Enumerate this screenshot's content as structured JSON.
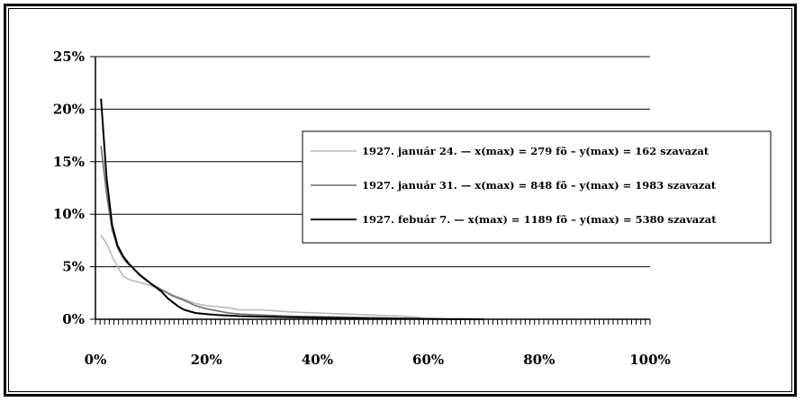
{
  "chart_data": {
    "type": "line",
    "title": "",
    "xlabel": "",
    "ylabel": "",
    "xlim": [
      0,
      100
    ],
    "ylim": [
      0,
      25
    ],
    "x_tick_labels": [
      "0%",
      "20%",
      "40%",
      "60%",
      "80%",
      "100%"
    ],
    "y_tick_labels": [
      "0%",
      "5%",
      "10%",
      "15%",
      "20%",
      "25%"
    ],
    "x_ticks": [
      0,
      20,
      40,
      60,
      80,
      100
    ],
    "y_ticks": [
      0,
      5,
      10,
      15,
      20,
      25
    ],
    "grid": true,
    "legend_position": "right",
    "series": [
      {
        "name": "1927. január 24. — x(max) = 279 fõ – y(max) = 162 szavazat",
        "color": "#b8b8b8",
        "x": [
          1,
          2,
          3,
          4,
          5,
          6,
          8,
          10,
          12,
          14,
          16,
          18,
          20,
          22,
          24,
          26,
          30,
          35,
          40,
          45,
          50,
          55,
          58,
          60
        ],
        "y": [
          8.0,
          7.2,
          6.0,
          5.0,
          4.1,
          3.8,
          3.5,
          3.2,
          2.8,
          2.3,
          1.9,
          1.5,
          1.3,
          1.2,
          1.1,
          0.9,
          0.9,
          0.7,
          0.6,
          0.5,
          0.4,
          0.3,
          0.2,
          0
        ]
      },
      {
        "name": "1927. január 31. — x(max) = 848 fõ – y(max) = 1983 szavazat",
        "color": "#6e6e6e",
        "x": [
          1,
          2,
          3,
          4,
          5,
          6,
          8,
          10,
          12,
          14,
          16,
          18,
          20,
          22,
          24,
          26,
          30,
          35,
          40,
          45,
          50,
          55,
          60,
          65
        ],
        "y": [
          16.5,
          12.0,
          8.5,
          6.8,
          5.8,
          5.2,
          4.3,
          3.4,
          2.8,
          2.2,
          1.8,
          1.3,
          1.0,
          0.8,
          0.6,
          0.5,
          0.4,
          0.3,
          0.25,
          0.2,
          0.15,
          0.1,
          0.05,
          0
        ]
      },
      {
        "name": "1927. febuár 7. — x(max) = 1189 fõ – y(max) = 5380 szavazat",
        "color": "#000000",
        "x": [
          1,
          2,
          3,
          4,
          5,
          6,
          8,
          10,
          12,
          13,
          14,
          15,
          16,
          18,
          20,
          22,
          24,
          26,
          30,
          35,
          40,
          45,
          50,
          55,
          60,
          70
        ],
        "y": [
          21.0,
          13.5,
          9.0,
          7.0,
          6.0,
          5.3,
          4.2,
          3.4,
          2.6,
          2.0,
          1.6,
          1.2,
          0.9,
          0.6,
          0.5,
          0.4,
          0.35,
          0.3,
          0.25,
          0.2,
          0.15,
          0.1,
          0.07,
          0.05,
          0.03,
          0
        ]
      }
    ]
  }
}
